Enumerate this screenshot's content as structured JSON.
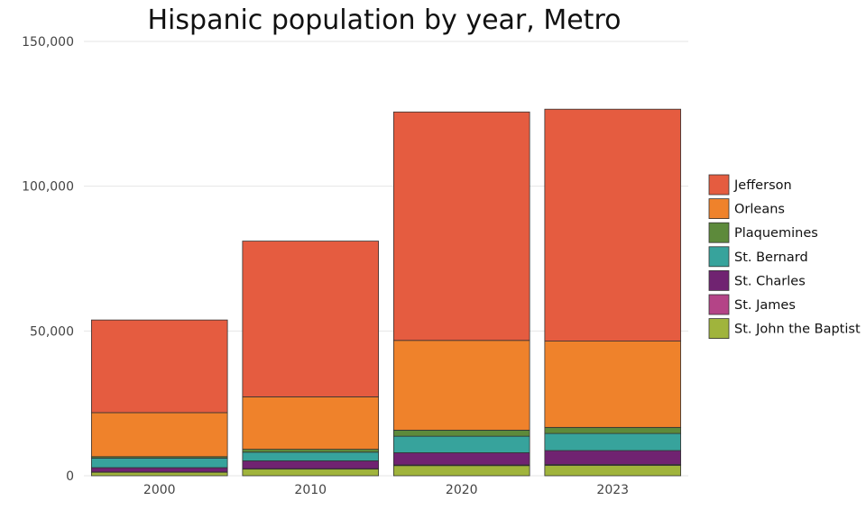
{
  "chart_data": {
    "type": "bar",
    "stacked": true,
    "title": "Hispanic population by year, Metro",
    "xlabel": "",
    "ylabel": "",
    "categories": [
      "2000",
      "2010",
      "2020",
      "2023"
    ],
    "ylim": [
      0,
      150000
    ],
    "y_ticks": [
      0,
      50000,
      100000,
      150000
    ],
    "y_tick_labels": [
      "0",
      "50,000",
      "100,000",
      "150,000"
    ],
    "grid": true,
    "legend_position": "right",
    "series": [
      {
        "name": "St. John the Baptist",
        "color": "#a0b43c",
        "values": [
          1200,
          2300,
          3500,
          3600
        ]
      },
      {
        "name": "St. James",
        "color": "#b44487",
        "values": [
          100,
          150,
          250,
          300
        ]
      },
      {
        "name": "St. Charles",
        "color": "#702371",
        "values": [
          1500,
          2700,
          4200,
          4800
        ]
      },
      {
        "name": "St. Bernard",
        "color": "#37a39c",
        "values": [
          3300,
          3000,
          5700,
          5900
        ]
      },
      {
        "name": "Plaquemines",
        "color": "#5d8a3b",
        "values": [
          500,
          1000,
          2100,
          2100
        ]
      },
      {
        "name": "Orleans",
        "color": "#ef822b",
        "values": [
          15200,
          18100,
          31000,
          29800
        ]
      },
      {
        "name": "Jefferson",
        "color": "#e55c40",
        "values": [
          32000,
          53800,
          78900,
          80100
        ]
      }
    ],
    "legend_order": [
      "Jefferson",
      "Orleans",
      "Plaquemines",
      "St. Bernard",
      "St. Charles",
      "St. James",
      "St. John the Baptist"
    ]
  }
}
